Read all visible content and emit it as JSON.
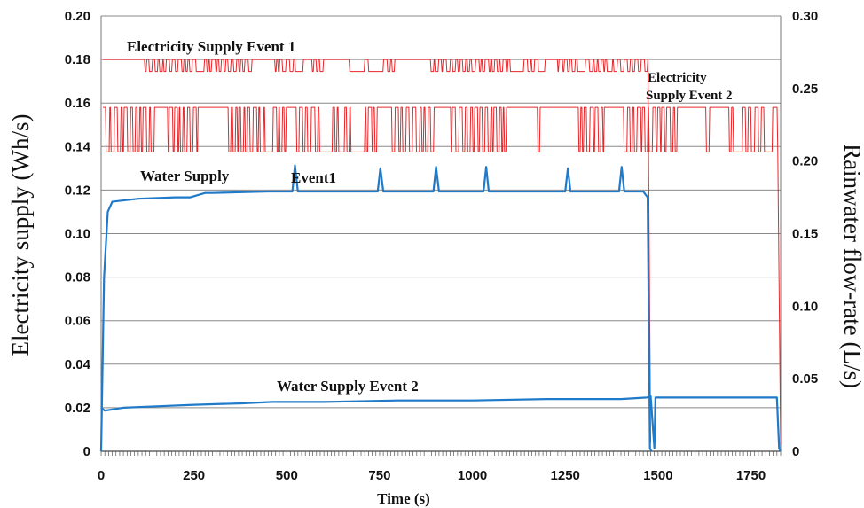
{
  "chart_data": {
    "type": "line",
    "xlabel": "Time (s)",
    "ylabel_left": "Electricity supply (Wh/s)",
    "ylabel_right": "Rainwater flow-rate (L/s)",
    "xlim": [
      0,
      1830
    ],
    "ylim_left": [
      0,
      0.2
    ],
    "ylim_right": [
      0,
      0.3
    ],
    "x_ticks": [
      "0",
      "250",
      "500",
      "750",
      "1000",
      "1250",
      "1500",
      "1750"
    ],
    "y_left_ticks": [
      "0",
      "0.02",
      "0.04",
      "0.06",
      "0.08",
      "0.10",
      "0.12",
      "0.14",
      "0.16",
      "0.18",
      "0.20"
    ],
    "y_right_ticks": [
      "0",
      "0.05",
      "0.10",
      "0.15",
      "0.20",
      "0.25",
      "0.30"
    ],
    "grid": true,
    "annotations": {
      "elec1": "Electricity Supply Event 1",
      "elec2_line1": "Electricity",
      "elec2_line2": "Supply Event 2",
      "water1_a": "Water Supply",
      "water1_b": "Event1",
      "water2": "Water Supply  Event 2"
    },
    "series": [
      {
        "id": "elec1",
        "axis": "left",
        "color": "#e8262a",
        "pattern": "square-wave",
        "x_range": [
          0,
          1480
        ],
        "levels": [
          0.1745,
          0.18
        ],
        "end_drop": [
          1480,
          0.004
        ]
      },
      {
        "id": "elec2",
        "axis": "left",
        "color": "#e8262a",
        "pattern": "square-wave",
        "x_range": [
          0,
          1830
        ],
        "levels": [
          0.1375,
          0.158
        ],
        "end_drop": [
          1830,
          0.003
        ]
      },
      {
        "id": "water1",
        "axis": "right",
        "color": "#1f7ac9",
        "points": [
          [
            0,
            0
          ],
          [
            8,
            0.12
          ],
          [
            18,
            0.165
          ],
          [
            30,
            0.172
          ],
          [
            100,
            0.174
          ],
          [
            200,
            0.175
          ],
          [
            240,
            0.175
          ],
          [
            280,
            0.178
          ],
          [
            300,
            0.178
          ],
          [
            450,
            0.179
          ],
          [
            515,
            0.179
          ],
          [
            522,
            0.197
          ],
          [
            530,
            0.179
          ],
          [
            745,
            0.179
          ],
          [
            752,
            0.195
          ],
          [
            760,
            0.179
          ],
          [
            895,
            0.179
          ],
          [
            902,
            0.196
          ],
          [
            910,
            0.179
          ],
          [
            1030,
            0.179
          ],
          [
            1037,
            0.196
          ],
          [
            1044,
            0.179
          ],
          [
            1250,
            0.179
          ],
          [
            1257,
            0.195
          ],
          [
            1264,
            0.179
          ],
          [
            1395,
            0.179
          ],
          [
            1402,
            0.196
          ],
          [
            1409,
            0.179
          ],
          [
            1460,
            0.179
          ],
          [
            1472,
            0.175
          ],
          [
            1478,
            0.002
          ],
          [
            1482,
            0
          ]
        ]
      },
      {
        "id": "water2",
        "axis": "right",
        "color": "#1f7ac9",
        "points": [
          [
            0,
            0.03
          ],
          [
            10,
            0.028
          ],
          [
            60,
            0.03
          ],
          [
            150,
            0.031
          ],
          [
            250,
            0.032
          ],
          [
            380,
            0.033
          ],
          [
            460,
            0.034
          ],
          [
            600,
            0.034
          ],
          [
            800,
            0.035
          ],
          [
            1000,
            0.035
          ],
          [
            1200,
            0.036
          ],
          [
            1400,
            0.036
          ],
          [
            1470,
            0.037
          ],
          [
            1480,
            0.038
          ],
          [
            1490,
            0.002
          ],
          [
            1493,
            0.037
          ],
          [
            1550,
            0.037
          ],
          [
            1700,
            0.037
          ],
          [
            1820,
            0.037
          ],
          [
            1826,
            0.002
          ],
          [
            1830,
            0
          ]
        ]
      }
    ]
  }
}
